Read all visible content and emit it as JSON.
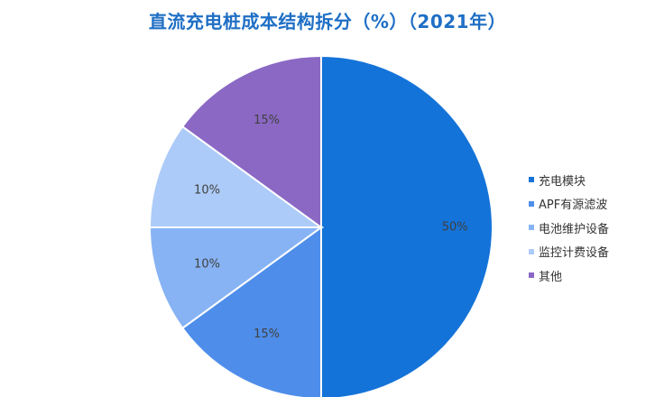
{
  "chart_data": {
    "type": "pie",
    "title": "直流充电桩成本结构拆分（%）（2021年）",
    "categories": [
      "充电模块",
      "APF有源滤波",
      "电池维护设备",
      "监控计费设备",
      "其他"
    ],
    "values": [
      50,
      15,
      10,
      10,
      15
    ],
    "labels": [
      "50%",
      "15%",
      "10%",
      "10%",
      "15%"
    ],
    "colors": [
      "#1473D8",
      "#4E8EEA",
      "#87B3F4",
      "#ADCBF8",
      "#8A68C4"
    ],
    "legend_position": "right"
  }
}
